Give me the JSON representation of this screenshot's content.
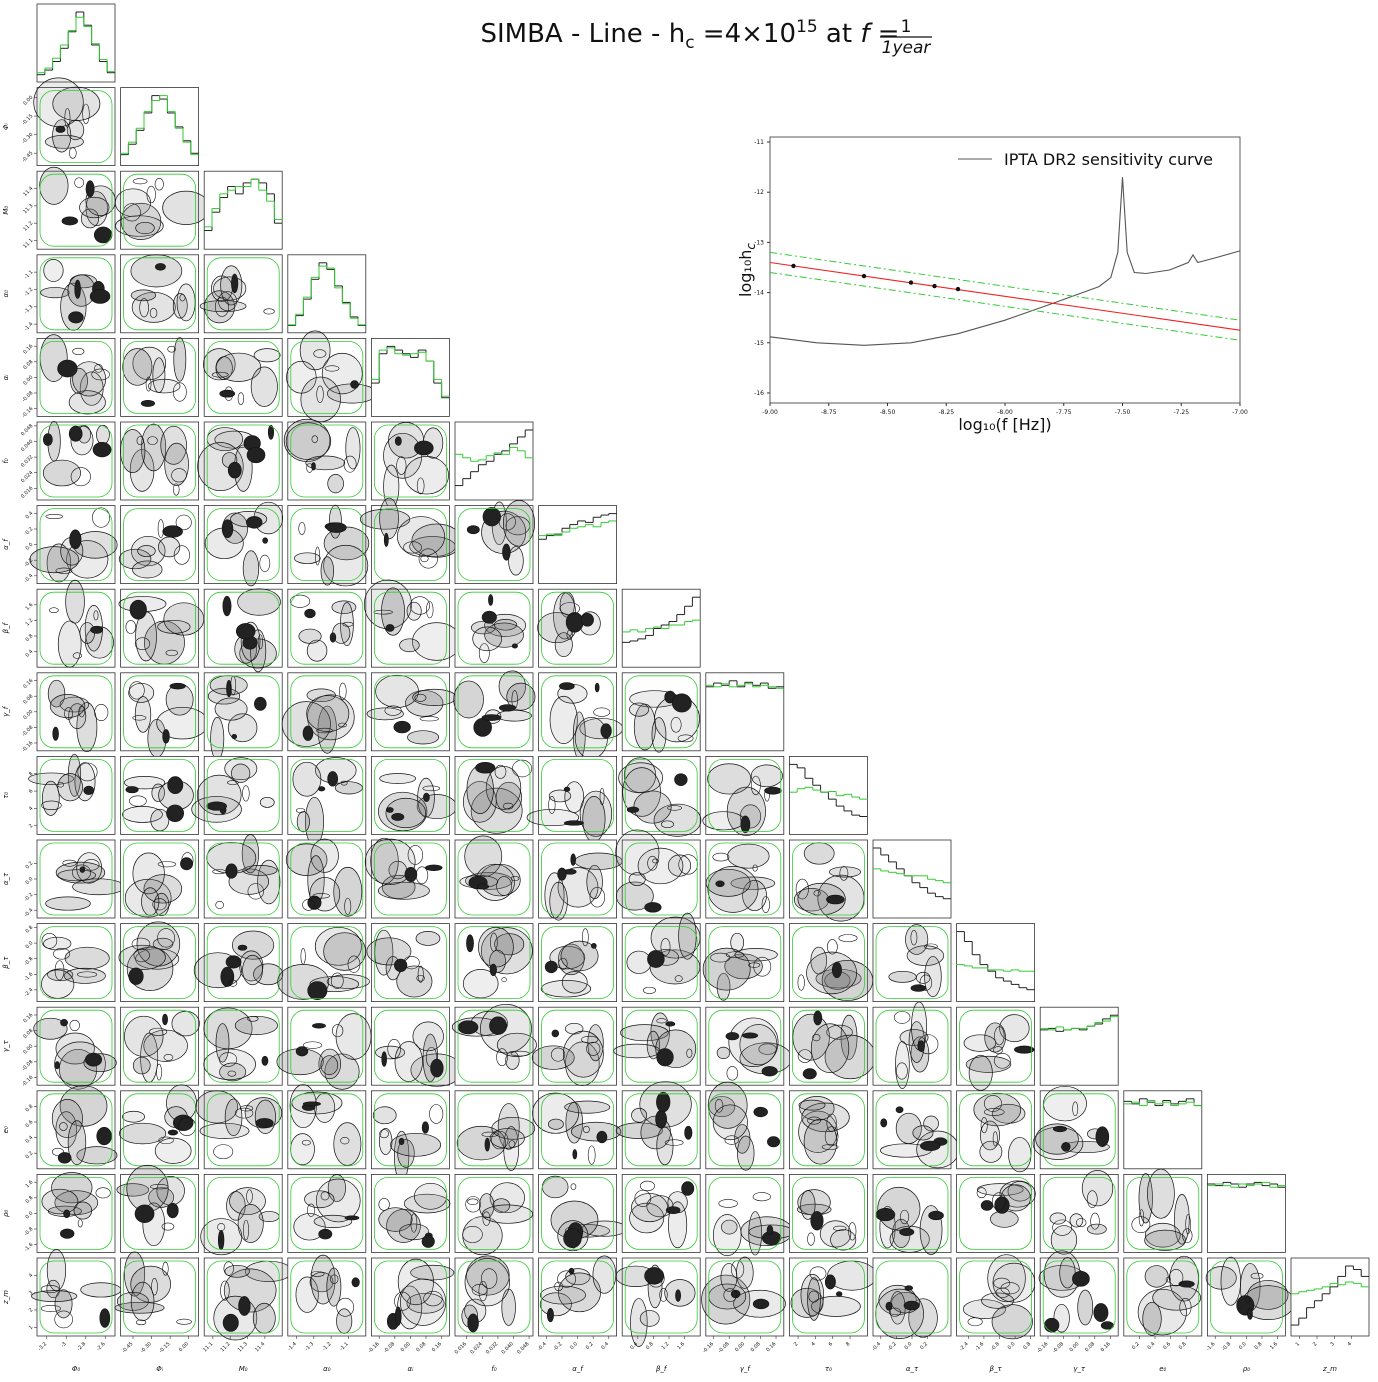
{
  "chart_data": {
    "type": "corner",
    "title": {
      "prefix": "SIMBA - Line - h",
      "sub": "c",
      "mid": " =4×10",
      "sup": "15",
      "at": " at ",
      "f": "f",
      "eq": " = ",
      "num": "1",
      "den": "1year"
    },
    "colors": {
      "black": "#222222",
      "green": "#33cc33"
    },
    "params": [
      {
        "label": "Φ₀",
        "lim": [
          -3.3,
          -2.5
        ],
        "ticks": [
          -3.2,
          -3.0,
          -2.8,
          -2.6
        ],
        "hist": [
          5,
          12,
          25,
          45,
          70,
          100,
          80,
          50,
          25,
          8
        ],
        "hist2": [
          8,
          15,
          30,
          50,
          72,
          92,
          78,
          52,
          28,
          10
        ]
      },
      {
        "label": "Φᵢ",
        "lim": [
          -0.55,
          0.08
        ],
        "ticks": [
          -0.45,
          {
            "value": -0.3,
            "label": "-0.30"
          },
          -0.15,
          {
            "value": 0,
            "label": "0.00"
          }
        ],
        "hist": [
          10,
          25,
          45,
          70,
          95,
          90,
          70,
          50,
          30,
          12
        ],
        "hist2": [
          12,
          28,
          48,
          72,
          88,
          95,
          72,
          48,
          28,
          10
        ]
      },
      {
        "label": "M₀",
        "lim": [
          11.05,
          11.5
        ],
        "ticks": [
          11.1,
          11.2,
          11.3,
          11.4
        ],
        "hist": [
          20,
          45,
          65,
          80,
          70,
          85,
          90,
          85,
          70,
          30
        ],
        "hist2": [
          25,
          50,
          70,
          75,
          80,
          80,
          90,
          75,
          60,
          35
        ]
      },
      {
        "label": "α₀",
        "lim": [
          -1.45,
          -1.0
        ],
        "ticks": [
          -1.4,
          -1.3,
          -1.2,
          -1.1
        ],
        "hist": [
          5,
          20,
          45,
          75,
          100,
          90,
          65,
          40,
          18,
          5
        ],
        "hist2": [
          6,
          22,
          48,
          78,
          95,
          92,
          62,
          38,
          16,
          6
        ]
      },
      {
        "label": "αᵢ",
        "lim": [
          -0.2,
          0.2
        ],
        "ticks": [
          -0.16,
          -0.08,
          {
            "value": 0,
            "label": "0.00"
          },
          0.08,
          0.16
        ],
        "hist": [
          40,
          80,
          90,
          85,
          80,
          75,
          85,
          70,
          40,
          20
        ],
        "hist2": [
          45,
          85,
          88,
          80,
          78,
          80,
          82,
          70,
          45,
          22
        ]
      },
      {
        "label": "f₀",
        "lim": [
          0.01,
          0.05
        ],
        "ticks": [
          0.016,
          0.024,
          0.032,
          {
            "value": 0.04,
            "label": "0.040"
          },
          0.048
        ],
        "hist": [
          15,
          25,
          35,
          45,
          50,
          60,
          65,
          75,
          85,
          95
        ],
        "hist2": [
          60,
          55,
          50,
          52,
          58,
          62,
          60,
          70,
          65,
          55
        ]
      },
      {
        "label": "α_f",
        "lim": [
          -0.5,
          0.5
        ],
        "ticks": [
          -0.4,
          -0.2,
          {
            "value": 0,
            "label": "0.0"
          },
          0.2,
          0.4
        ],
        "hist": [
          55,
          60,
          62,
          70,
          75,
          80,
          78,
          85,
          88,
          90
        ],
        "hist2": [
          60,
          62,
          60,
          65,
          70,
          72,
          75,
          72,
          78,
          80
        ]
      },
      {
        "label": "β_f",
        "lim": [
          0,
          2
        ],
        "ticks": [
          0.4,
          0.8,
          1.2,
          1.6
        ],
        "hist": [
          30,
          32,
          35,
          40,
          50,
          55,
          60,
          70,
          82,
          95
        ],
        "hist2": [
          45,
          48,
          45,
          50,
          52,
          50,
          55,
          55,
          60,
          62
        ]
      },
      {
        "label": "γ_f",
        "lim": [
          -0.2,
          0.2
        ],
        "ticks": [
          -0.16,
          -0.08,
          {
            "value": 0,
            "label": "0.00"
          },
          0.08,
          0.16
        ],
        "hist": [
          80,
          85,
          82,
          88,
          80,
          86,
          82,
          85,
          78,
          80
        ],
        "hist2": [
          82,
          80,
          84,
          80,
          82,
          84,
          80,
          82,
          80,
          78
        ]
      },
      {
        "label": "τ₀",
        "lim": [
          1,
          10
        ],
        "ticks": [
          2,
          4,
          6,
          8
        ],
        "hist": [
          95,
          90,
          75,
          65,
          55,
          45,
          35,
          28,
          22,
          20
        ],
        "hist2": [
          55,
          60,
          62,
          58,
          55,
          56,
          50,
          52,
          48,
          45
        ]
      },
      {
        "label": "α_τ",
        "lim": [
          -0.5,
          0.5
        ],
        "ticks": [
          -0.4,
          -0.2,
          {
            "value": 0,
            "label": "0.0"
          },
          0.2
        ],
        "hist": [
          95,
          85,
          75,
          65,
          55,
          45,
          38,
          30,
          25,
          22
        ],
        "hist2": [
          65,
          62,
          60,
          58,
          55,
          55,
          55,
          50,
          48,
          45
        ]
      },
      {
        "label": "β_τ",
        "lim": [
          -3,
          1
        ],
        "ticks": [
          -2.4,
          -1.6,
          -0.8,
          {
            "value": 0,
            "label": "0.0"
          },
          0.8
        ],
        "hist": [
          100,
          85,
          65,
          50,
          40,
          30,
          25,
          20,
          15,
          12
        ],
        "hist2": [
          50,
          48,
          45,
          45,
          42,
          42,
          40,
          42,
          40,
          40
        ]
      },
      {
        "label": "γ_τ",
        "lim": [
          -0.2,
          0.2
        ],
        "ticks": [
          -0.16,
          -0.08,
          {
            "value": 0,
            "label": "0.00"
          },
          0.08,
          0.16
        ],
        "hist": [
          70,
          72,
          68,
          70,
          72,
          70,
          75,
          78,
          85,
          90
        ],
        "hist2": [
          72,
          70,
          74,
          70,
          72,
          72,
          75,
          80,
          82,
          88
        ]
      },
      {
        "label": "e₀",
        "lim": [
          0,
          1
        ],
        "ticks": [
          0.2,
          0.4,
          0.6,
          0.8
        ],
        "hist": [
          75,
          72,
          78,
          74,
          70,
          76,
          72,
          75,
          78,
          70
        ],
        "hist2": [
          72,
          74,
          70,
          76,
          72,
          74,
          70,
          72,
          74,
          70
        ]
      },
      {
        "label": "ρ₀",
        "lim": [
          -2,
          2
        ],
        "ticks": [
          -1.6,
          -0.8,
          {
            "value": 0,
            "label": "0.0"
          },
          0.8,
          1.6
        ],
        "hist": [
          80,
          78,
          82,
          80,
          76,
          80,
          82,
          78,
          80,
          76
        ],
        "hist2": [
          78,
          80,
          78,
          76,
          80,
          78,
          80,
          82,
          76,
          78
        ]
      },
      {
        "label": "z_m",
        "lim": [
          0.5,
          5
        ],
        "ticks": [
          1,
          2,
          3,
          4
        ],
        "hist": [
          10,
          20,
          35,
          45,
          55,
          65,
          80,
          95,
          90,
          80
        ],
        "hist2": [
          55,
          58,
          60,
          62,
          65,
          70,
          68,
          72,
          70,
          65
        ]
      }
    ],
    "inset": {
      "type": "line",
      "xlabel": "log₁₀(f [Hz])",
      "ylabel": "log₁₀h",
      "ylabel_sub": "c",
      "xlim": [
        -9,
        -7
      ],
      "ylim": [
        -16.2,
        -10.9
      ],
      "xticks": [
        {
          "value": -9,
          "label": "-9.00"
        },
        -8.75,
        {
          "value": -8.5,
          "label": "-8.50"
        },
        -8.25,
        {
          "value": -8,
          "label": "-8.00"
        },
        -7.75,
        {
          "value": -7.5,
          "label": "-7.50"
        },
        -7.25,
        {
          "value": -7,
          "label": "-7.00"
        }
      ],
      "yticks": [
        -16,
        -15,
        -14,
        -13,
        -12,
        -11
      ],
      "legend": "upper right",
      "series": [
        {
          "name": "IPTA DR2 sensitivity curve",
          "color": "#555555",
          "style": "solid",
          "x": [
            -9,
            -8.8,
            -8.6,
            -8.4,
            -8.2,
            -8.0,
            -7.8,
            -7.6,
            -7.55,
            -7.52,
            -7.5,
            -7.48,
            -7.45,
            -7.4,
            -7.3,
            -7.22,
            -7.2,
            -7.18,
            -7.1,
            -7.0
          ],
          "values": [
            -14.88,
            -15.0,
            -15.05,
            -15.0,
            -14.82,
            -14.55,
            -14.22,
            -13.88,
            -13.7,
            -13.2,
            -11.7,
            -13.2,
            -13.6,
            -13.62,
            -13.55,
            -13.4,
            -13.25,
            -13.4,
            -13.3,
            -13.17
          ]
        },
        {
          "color": "#ee2222",
          "style": "solid",
          "x": [
            -9,
            -7
          ],
          "values": [
            -13.4,
            -14.75
          ]
        },
        {
          "color": "#33cc33",
          "style": "dashdot",
          "x": [
            -9,
            -7
          ],
          "values": [
            -13.2,
            -14.55
          ]
        },
        {
          "color": "#33cc33",
          "style": "dashdot",
          "x": [
            -9,
            -7
          ],
          "values": [
            -13.6,
            -14.95
          ]
        },
        {
          "color": "#111111",
          "style": "marker",
          "x": [
            -8.9,
            -8.6,
            -8.4,
            -8.3,
            -8.2
          ],
          "values": [
            -13.47,
            -13.67,
            -13.8,
            -13.87,
            -13.93
          ]
        }
      ]
    }
  }
}
